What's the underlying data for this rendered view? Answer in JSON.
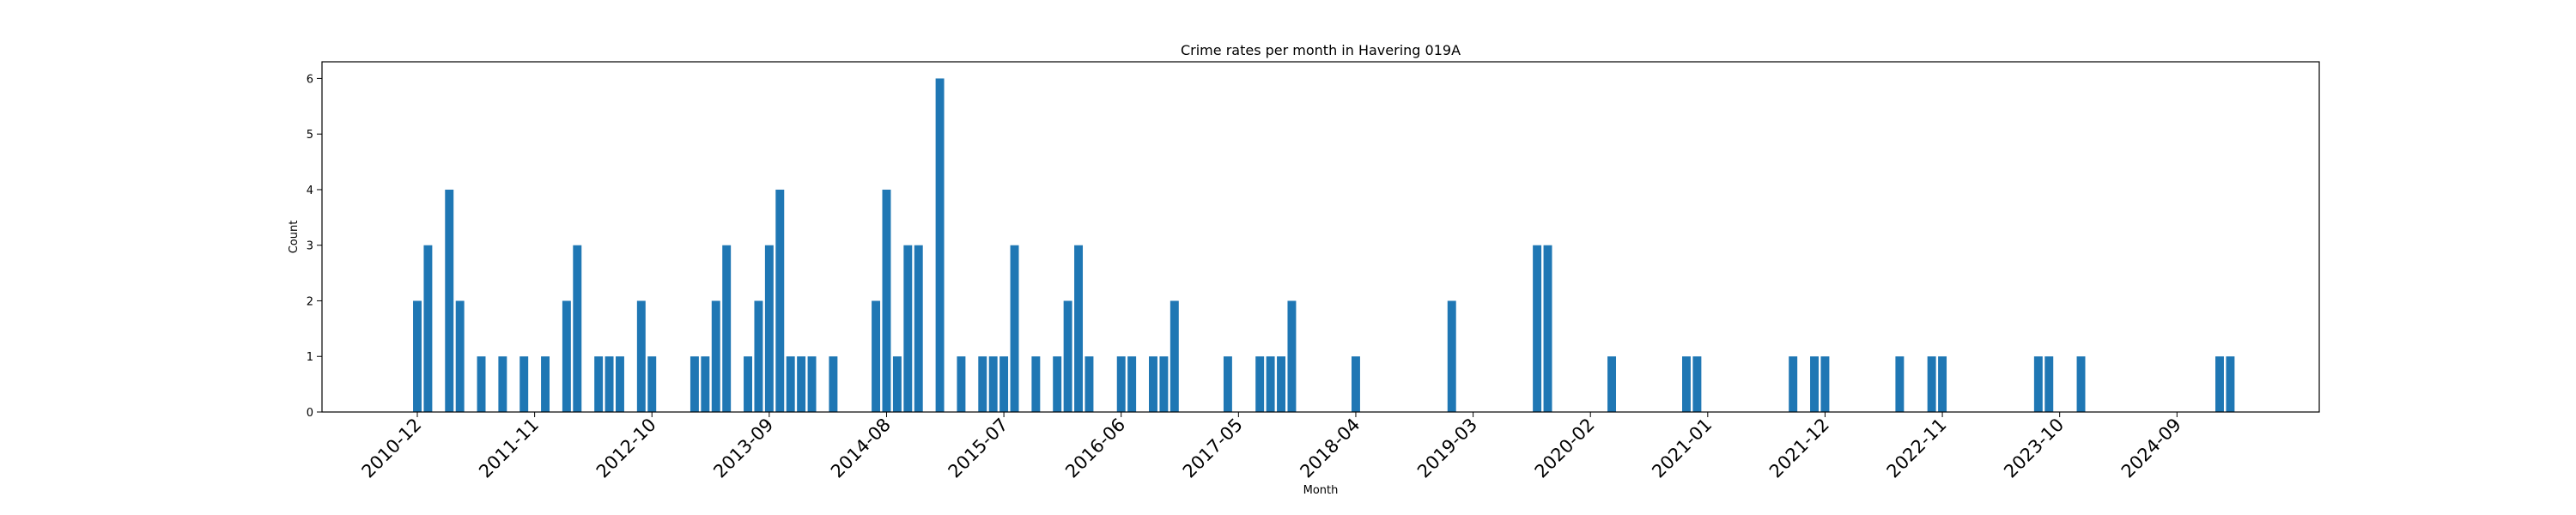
{
  "chart_data": {
    "type": "bar",
    "title": "Crime rates per month in Havering 019A",
    "xlabel": "Month",
    "ylabel": "Count",
    "ylim": [
      0,
      6.3
    ],
    "yticks": [
      "0",
      "1",
      "2",
      "3",
      "4",
      "5",
      "6"
    ],
    "xtick_labels": [
      "2010-12",
      "2011-11",
      "2012-10",
      "2013-09",
      "2014-08",
      "2015-07",
      "2016-06",
      "2017-05",
      "2018-04",
      "2019-03",
      "2020-02",
      "2021-01",
      "2021-12",
      "2022-11",
      "2023-10",
      "2024-09"
    ],
    "bar_color": "#1f77b4",
    "grid": false,
    "categories": [
      "2010-12",
      "2011-01",
      "2011-03",
      "2011-04",
      "2011-06",
      "2011-08",
      "2011-10",
      "2011-12",
      "2012-02",
      "2012-03",
      "2012-05",
      "2012-06",
      "2012-07",
      "2012-09",
      "2012-10",
      "2013-02",
      "2013-03",
      "2013-04",
      "2013-05",
      "2013-07",
      "2013-08",
      "2013-09",
      "2013-10",
      "2013-11",
      "2013-12",
      "2014-01",
      "2014-03",
      "2014-07",
      "2014-08",
      "2014-09",
      "2014-10",
      "2014-11",
      "2015-01",
      "2015-03",
      "2015-05",
      "2015-06",
      "2015-07",
      "2015-08",
      "2015-10",
      "2015-12",
      "2016-01",
      "2016-02",
      "2016-03",
      "2016-06",
      "2016-07",
      "2016-09",
      "2016-10",
      "2016-11",
      "2017-04",
      "2017-07",
      "2017-08",
      "2017-09",
      "2017-10",
      "2018-04",
      "2019-01",
      "2019-09",
      "2019-10",
      "2020-04",
      "2020-11",
      "2020-12",
      "2021-09",
      "2021-11",
      "2021-12",
      "2022-07",
      "2022-10",
      "2022-11",
      "2023-08",
      "2023-09",
      "2023-12",
      "2025-01",
      "2025-02"
    ],
    "values": [
      2,
      3,
      4,
      2,
      1,
      1,
      1,
      1,
      2,
      3,
      1,
      1,
      1,
      2,
      1,
      1,
      1,
      2,
      3,
      1,
      2,
      3,
      4,
      1,
      1,
      1,
      1,
      2,
      4,
      1,
      3,
      3,
      6,
      1,
      1,
      1,
      1,
      3,
      1,
      1,
      2,
      3,
      1,
      1,
      1,
      1,
      1,
      2,
      1,
      1,
      1,
      1,
      2,
      1,
      2,
      3,
      3,
      1,
      1,
      1,
      1,
      1,
      1,
      1,
      1,
      1,
      1,
      1,
      1,
      1,
      1
    ]
  }
}
